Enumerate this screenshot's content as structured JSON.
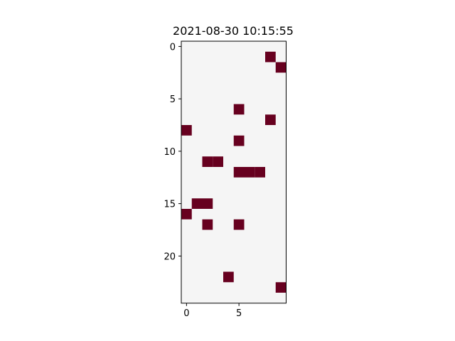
{
  "chart_data": {
    "type": "heatmap",
    "title": "2021-08-30 10:15:55",
    "xlabel": "",
    "ylabel": "",
    "n_rows": 25,
    "n_cols": 10,
    "xlim": [
      -0.5,
      9.5
    ],
    "ylim": [
      24.5,
      -0.5
    ],
    "x_ticks": [
      0,
      5
    ],
    "y_ticks": [
      0,
      5,
      10,
      15,
      20
    ],
    "grid": false,
    "colors": {
      "background": "#f5f5f5",
      "active": "#67001f"
    },
    "active_cells": [
      [
        1,
        8
      ],
      [
        2,
        9
      ],
      [
        6,
        5
      ],
      [
        7,
        8
      ],
      [
        8,
        0
      ],
      [
        9,
        5
      ],
      [
        11,
        2
      ],
      [
        11,
        3
      ],
      [
        12,
        5
      ],
      [
        12,
        6
      ],
      [
        12,
        7
      ],
      [
        15,
        1
      ],
      [
        15,
        2
      ],
      [
        16,
        0
      ],
      [
        17,
        2
      ],
      [
        17,
        5
      ],
      [
        22,
        4
      ],
      [
        23,
        9
      ]
    ]
  }
}
